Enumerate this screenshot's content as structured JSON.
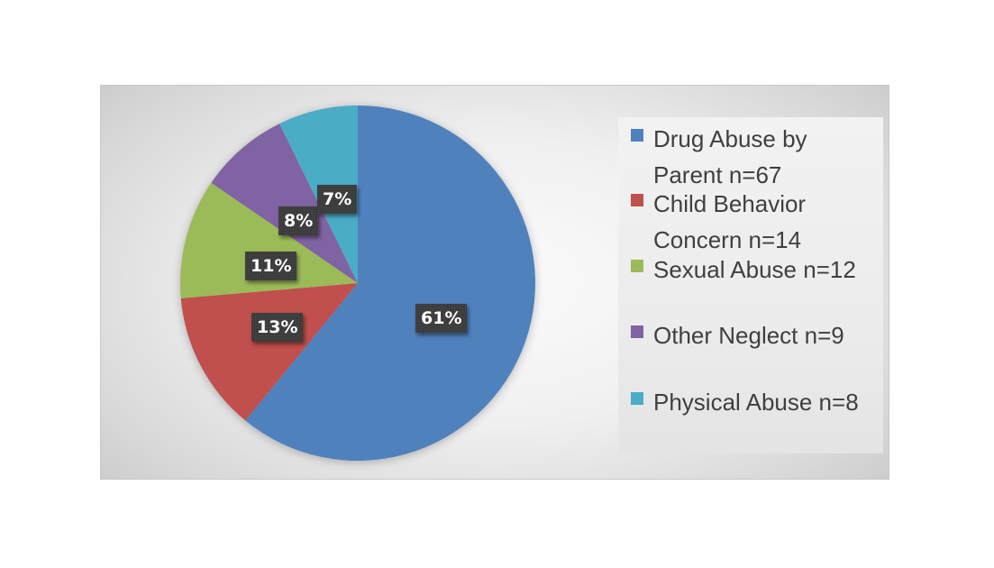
{
  "chart_data": {
    "type": "pie",
    "title": "",
    "categories": [
      "Drug Abuse by Parent",
      "Child Behavior Concern",
      "Sexual Abuse",
      "Other Neglect",
      "Physical Abuse"
    ],
    "values": [
      67,
      14,
      12,
      9,
      8
    ],
    "percent_labels": [
      "61%",
      "13%",
      "11%",
      "8%",
      "7%"
    ],
    "colors": [
      "#4f81bd",
      "#c0504d",
      "#9bbb59",
      "#8064a2",
      "#4bacc6"
    ],
    "start_angle": "12 o'clock",
    "direction": "clockwise",
    "legend_position": "right",
    "legend_entries": [
      "Drug Abuse by\nParent n=67",
      "Child Behavior\nConcern n=14",
      "Sexual Abuse n=12",
      "Other Neglect n=9",
      "Physical Abuse n=8"
    ]
  },
  "labels": {
    "drug": "61%",
    "child": "13%",
    "sexual": "11%",
    "other": "8%",
    "physical": "7%"
  },
  "legend": {
    "items": [
      {
        "text": "Drug Abuse by\nParent n=67",
        "color": "#4f81bd"
      },
      {
        "text": "Child Behavior\nConcern n=14",
        "color": "#c0504d"
      },
      {
        "text": "Sexual Abuse n=12",
        "color": "#9bbb59"
      },
      {
        "text": "Other Neglect n=9",
        "color": "#8064a2"
      },
      {
        "text": "Physical Abuse n=8",
        "color": "#4bacc6"
      }
    ]
  }
}
